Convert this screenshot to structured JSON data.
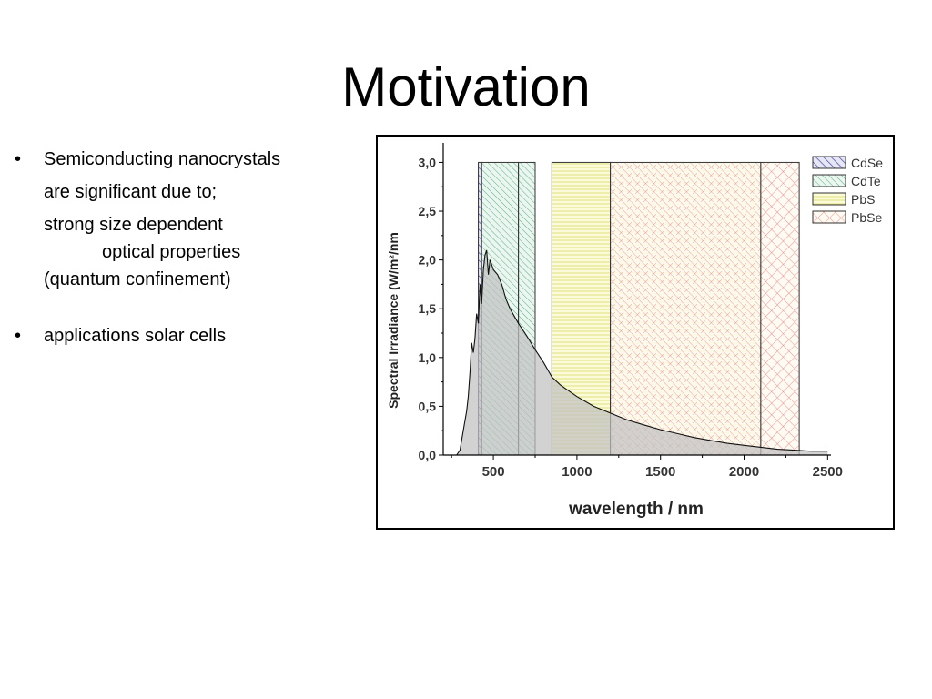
{
  "slide": {
    "title": "Motivation",
    "bullet_marker": "•",
    "bullets": [
      {
        "lines": [
          "Semiconducting nanocrystals",
          "are significant due to;",
          "strong size dependent",
          "optical properties",
          "(quantum  confinement)"
        ]
      },
      {
        "lines": [
          "applications  solar cells"
        ]
      }
    ]
  },
  "chart_data": {
    "type": "area",
    "xlabel": "wavelength / nm",
    "ylabel": "Spectral Irradiance (W/m²/nm",
    "xlim": [
      200,
      2520
    ],
    "ylim": [
      0,
      3.2
    ],
    "x_ticks": [
      500,
      1000,
      1500,
      2000,
      2500
    ],
    "x_tick_labels": [
      "500",
      "1000",
      "1500",
      "2000",
      "2500"
    ],
    "y_ticks": [
      0,
      0.5,
      1.0,
      1.5,
      2.0,
      2.5,
      3.0
    ],
    "y_tick_labels": [
      "0,0",
      "0,5",
      "1,0",
      "1,5",
      "2,0",
      "2,5",
      "3,0"
    ],
    "legend_position": "top-right",
    "legend": [
      {
        "name": "CdSe",
        "color": "#5b5bb5",
        "pattern": "diagonal-hatch"
      },
      {
        "name": "CdTe",
        "color": "#3a9a6a",
        "pattern": "diagonal-hatch-light"
      },
      {
        "name": "PbS",
        "color": "#d8d860",
        "pattern": "horizontal-lines"
      },
      {
        "name": "PbSe",
        "color": "#e05050",
        "pattern": "crosshatch"
      }
    ],
    "absorption_bands": [
      {
        "name": "CdSe",
        "x_range": [
          410,
          430
        ]
      },
      {
        "name": "CdTe",
        "x_range": [
          430,
          650
        ]
      },
      {
        "name": "CdTe",
        "x_range": [
          650,
          750
        ]
      },
      {
        "name": "PbS",
        "x_range": [
          850,
          1200
        ]
      },
      {
        "name": "PbS + PbSe",
        "x_range": [
          1200,
          2100
        ]
      },
      {
        "name": "PbSe",
        "x_range": [
          2100,
          2330
        ]
      }
    ],
    "band_top": 3.0,
    "series": [
      {
        "fill": "#c0c0c0",
        "x": [
          280,
          300,
          320,
          340,
          350,
          360,
          370,
          380,
          390,
          400,
          410,
          420,
          430,
          440,
          450,
          460,
          470,
          480,
          490,
          500,
          525,
          550,
          575,
          600,
          650,
          700,
          750,
          800,
          850,
          900,
          950,
          1000,
          1100,
          1200,
          1300,
          1400,
          1500,
          1600,
          1700,
          1800,
          1900,
          2000,
          2100,
          2200,
          2300,
          2400,
          2500
        ],
        "y": [
          0.0,
          0.05,
          0.25,
          0.45,
          0.6,
          0.85,
          1.15,
          1.05,
          1.2,
          1.45,
          1.35,
          1.75,
          1.55,
          1.9,
          2.05,
          2.1,
          1.85,
          2.0,
          1.95,
          1.9,
          1.85,
          1.75,
          1.6,
          1.5,
          1.35,
          1.22,
          1.08,
          0.95,
          0.8,
          0.72,
          0.66,
          0.6,
          0.5,
          0.43,
          0.36,
          0.31,
          0.26,
          0.22,
          0.18,
          0.15,
          0.12,
          0.1,
          0.08,
          0.06,
          0.05,
          0.04,
          0.04
        ]
      }
    ]
  }
}
